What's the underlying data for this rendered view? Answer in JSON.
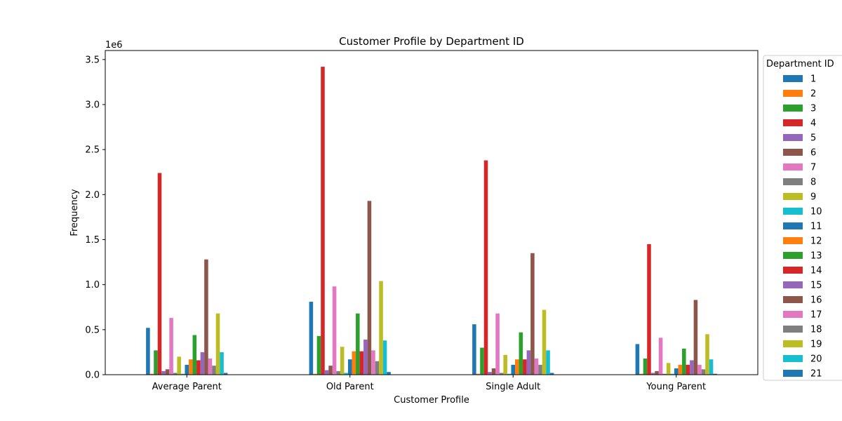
{
  "chart_data": {
    "type": "bar",
    "title": "Customer Profile by Department ID",
    "xlabel": "Customer Profile",
    "ylabel": "Frequency",
    "y_scale_label": "1e6",
    "ylim": [
      0,
      3.6
    ],
    "y_ticks": [
      "0.0",
      "0.5",
      "1.0",
      "1.5",
      "2.0",
      "2.5",
      "3.0",
      "3.5"
    ],
    "categories": [
      "Average Parent",
      "Old Parent",
      "Single Adult",
      "Young Parent"
    ],
    "legend_title": "Department ID",
    "legend_position": "outside-right",
    "series": [
      {
        "name": "1",
        "color": "#1f77b4",
        "values": [
          0.52,
          0.81,
          0.56,
          0.34
        ]
      },
      {
        "name": "2",
        "color": "#ff7f0e",
        "values": [
          0.01,
          0.01,
          0.01,
          0.01
        ]
      },
      {
        "name": "3",
        "color": "#2ca02c",
        "values": [
          0.27,
          0.43,
          0.3,
          0.18
        ]
      },
      {
        "name": "4",
        "color": "#d62728",
        "values": [
          2.24,
          3.42,
          2.38,
          1.45
        ]
      },
      {
        "name": "5",
        "color": "#9467bd",
        "values": [
          0.04,
          0.05,
          0.03,
          0.02
        ]
      },
      {
        "name": "6",
        "color": "#8c564b",
        "values": [
          0.06,
          0.1,
          0.07,
          0.04
        ]
      },
      {
        "name": "7",
        "color": "#e377c2",
        "values": [
          0.63,
          0.98,
          0.68,
          0.41
        ]
      },
      {
        "name": "8",
        "color": "#7f7f7f",
        "values": [
          0.02,
          0.04,
          0.02,
          0.01
        ]
      },
      {
        "name": "9",
        "color": "#bcbd22",
        "values": [
          0.2,
          0.31,
          0.22,
          0.13
        ]
      },
      {
        "name": "10",
        "color": "#17becf",
        "values": [
          0.01,
          0.02,
          0.01,
          0.01
        ]
      },
      {
        "name": "11",
        "color": "#1f77b4",
        "values": [
          0.11,
          0.17,
          0.11,
          0.07
        ]
      },
      {
        "name": "12",
        "color": "#ff7f0e",
        "values": [
          0.17,
          0.26,
          0.17,
          0.11
        ]
      },
      {
        "name": "13",
        "color": "#2ca02c",
        "values": [
          0.44,
          0.68,
          0.47,
          0.29
        ]
      },
      {
        "name": "14",
        "color": "#d62728",
        "values": [
          0.16,
          0.26,
          0.17,
          0.11
        ]
      },
      {
        "name": "15",
        "color": "#9467bd",
        "values": [
          0.25,
          0.39,
          0.27,
          0.16
        ]
      },
      {
        "name": "16",
        "color": "#8c564b",
        "values": [
          1.28,
          1.93,
          1.35,
          0.83
        ]
      },
      {
        "name": "17",
        "color": "#e377c2",
        "values": [
          0.18,
          0.27,
          0.18,
          0.11
        ]
      },
      {
        "name": "18",
        "color": "#7f7f7f",
        "values": [
          0.1,
          0.15,
          0.11,
          0.06
        ]
      },
      {
        "name": "19",
        "color": "#bcbd22",
        "values": [
          0.68,
          1.04,
          0.72,
          0.45
        ]
      },
      {
        "name": "20",
        "color": "#17becf",
        "values": [
          0.25,
          0.38,
          0.27,
          0.17
        ]
      },
      {
        "name": "21",
        "color": "#1f77b4",
        "values": [
          0.02,
          0.03,
          0.02,
          0.01
        ]
      }
    ]
  }
}
